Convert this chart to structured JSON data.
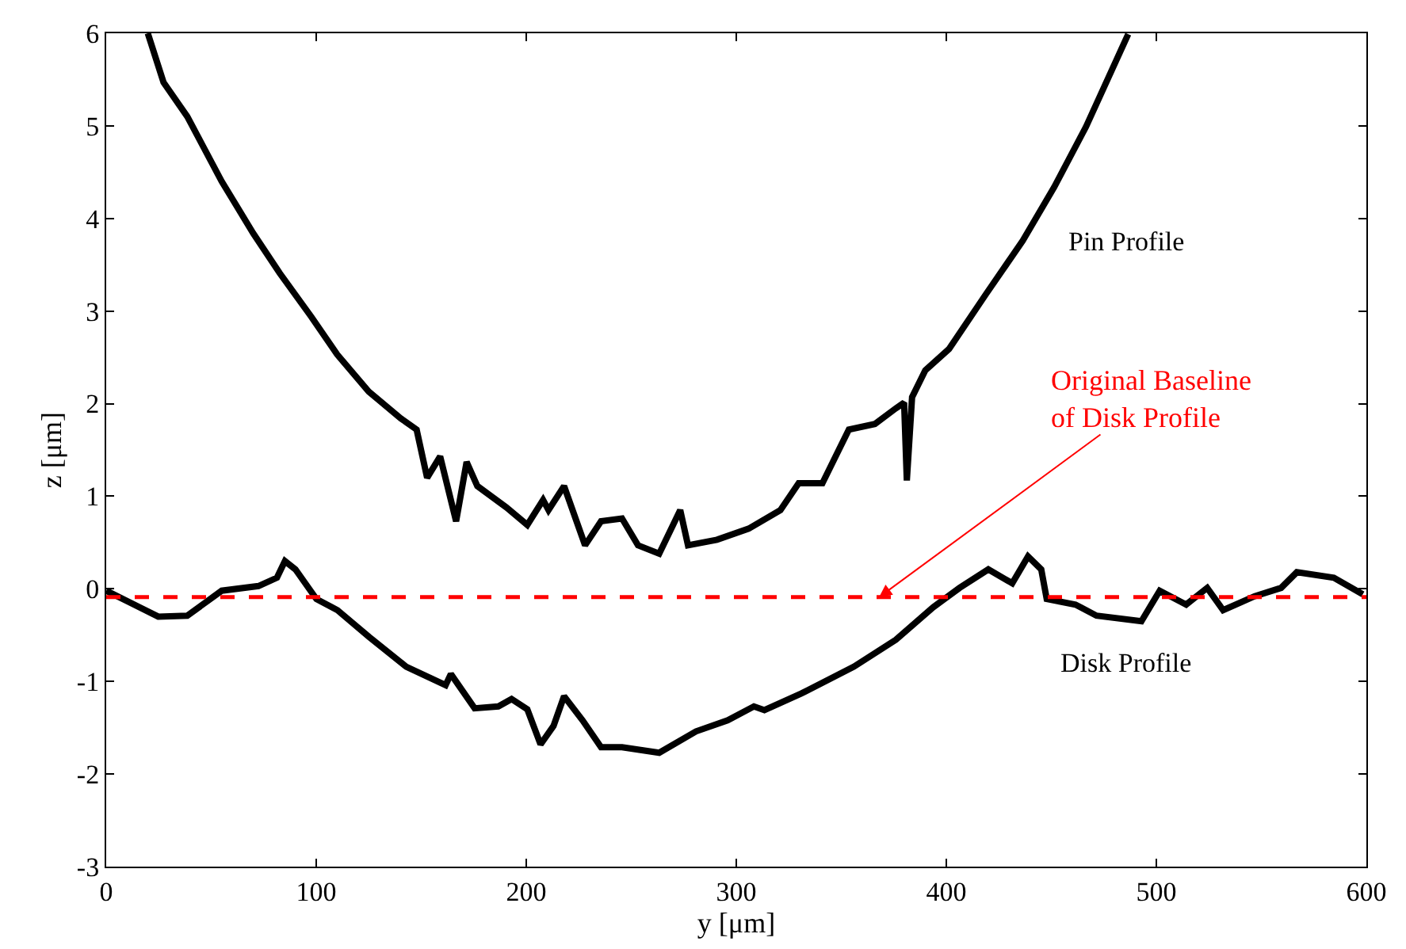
{
  "chart_data": {
    "type": "line",
    "xlabel": "y [μm]",
    "ylabel": "z [μm]",
    "xlim": [
      0,
      600
    ],
    "xticks": [
      0,
      100,
      200,
      300,
      400,
      500,
      600
    ],
    "ylim": [
      -3,
      6
    ],
    "yticks": [
      -3,
      -2,
      -1,
      0,
      1,
      2,
      3,
      4,
      5,
      6
    ],
    "line_style": "solid",
    "series": [
      {
        "color": "#000000",
        "x": [
          19.8,
          27.3,
          38.6,
          55,
          70,
          82.6,
          97.6,
          110,
          125,
          140.3,
          147.8,
          152.8,
          159,
          166.6,
          171.6,
          176.7,
          190.5,
          200.5,
          208,
          210.6,
          218,
          228,
          235.6,
          245.6,
          253.2,
          263.3,
          273.3,
          277,
          290.8,
          305.9,
          321,
          329.7,
          341,
          353.6,
          366,
          376,
          379.9,
          381.2,
          383.7,
          390,
          401.3,
          418.8,
          436.4,
          451.4,
          466.5,
          486.6
        ],
        "values": [
          6.0,
          5.47,
          5.1,
          4.4,
          3.84,
          3.41,
          2.94,
          2.53,
          2.13,
          1.84,
          1.72,
          1.2,
          1.43,
          0.73,
          1.37,
          1.11,
          0.88,
          0.69,
          0.96,
          0.85,
          1.11,
          0.47,
          0.73,
          0.76,
          0.47,
          0.38,
          0.85,
          0.47,
          0.53,
          0.65,
          0.85,
          1.14,
          1.14,
          1.72,
          1.78,
          1.95,
          2.01,
          1.17,
          2.07,
          2.36,
          2.59,
          3.18,
          3.76,
          4.34,
          4.99,
          5.99
        ]
      },
      {
        "color": "#000000",
        "x": [
          0,
          24.8,
          38.6,
          55,
          72.5,
          81.3,
          85.1,
          90.1,
          100.1,
          110.1,
          125.2,
          142.8,
          161.6,
          164.1,
          175.4,
          186.7,
          193,
          200.5,
          206.8,
          213,
          218,
          226.8,
          235.6,
          245.6,
          263.3,
          280.8,
          295.9,
          308.4,
          313.4,
          331,
          356,
          376,
          393.7,
          406.3,
          420,
          431.4,
          438.9,
          445.2,
          447.8,
          461.5,
          471.5,
          492.9,
          501.6,
          514.2,
          524.2,
          531.8,
          546.8,
          559.4,
          566.9,
          584.5,
          598.3
        ],
        "values": [
          -0.02,
          -0.3,
          -0.29,
          -0.02,
          0.03,
          0.12,
          0.3,
          0.21,
          -0.11,
          -0.23,
          -0.52,
          -0.84,
          -1.04,
          -0.92,
          -1.29,
          -1.27,
          -1.19,
          -1.3,
          -1.68,
          -1.48,
          -1.16,
          -1.42,
          -1.71,
          -1.71,
          -1.77,
          -1.54,
          -1.42,
          -1.27,
          -1.31,
          -1.13,
          -0.84,
          -0.55,
          -0.2,
          0.01,
          0.21,
          0.06,
          0.35,
          0.21,
          -0.11,
          -0.17,
          -0.29,
          -0.35,
          -0.02,
          -0.17,
          0.01,
          -0.23,
          -0.08,
          0.01,
          0.18,
          0.12,
          -0.06
        ]
      }
    ],
    "ref_lines": [
      {
        "axis": "y",
        "value": -0.09,
        "color": "#ff0000",
        "line_style": "dashed"
      }
    ],
    "annotations": [
      "Pin Profile",
      "Disk Profile",
      {
        "text": "Original Baseline\nof Disk Profile",
        "x": 368,
        "y": -0.09
      }
    ]
  }
}
